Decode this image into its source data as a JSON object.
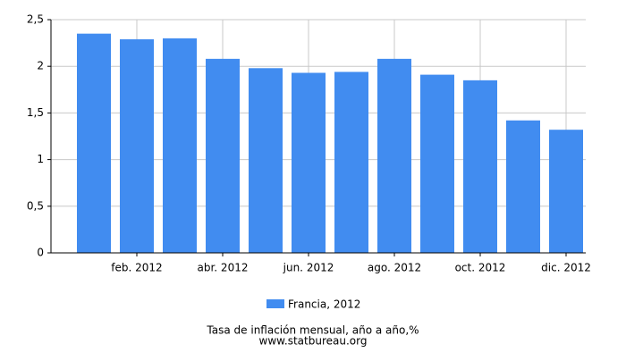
{
  "chart_data": {
    "type": "bar",
    "title": "Tasa de inflación mensual, año a año,%",
    "source": "www.statbureau.org",
    "categories": [
      null,
      "feb. 2012",
      null,
      "abr. 2012",
      null,
      "jun. 2012",
      null,
      "ago. 2012",
      null,
      "oct. 2012",
      null,
      "dic. 2012"
    ],
    "series": [
      {
        "name": "Francia, 2012",
        "color": "#418cf0",
        "values": [
          2.35,
          2.29,
          2.3,
          2.08,
          1.98,
          1.93,
          1.94,
          2.08,
          1.91,
          1.85,
          1.42,
          1.32
        ]
      }
    ],
    "ylim": [
      0,
      2.5
    ],
    "yticks": [
      0,
      {
        "value": 0.5,
        "label": "0,5"
      },
      1,
      {
        "value": 1.5,
        "label": "1,5"
      },
      2,
      {
        "value": 2.5,
        "label": "2,5"
      }
    ],
    "grid": true
  }
}
